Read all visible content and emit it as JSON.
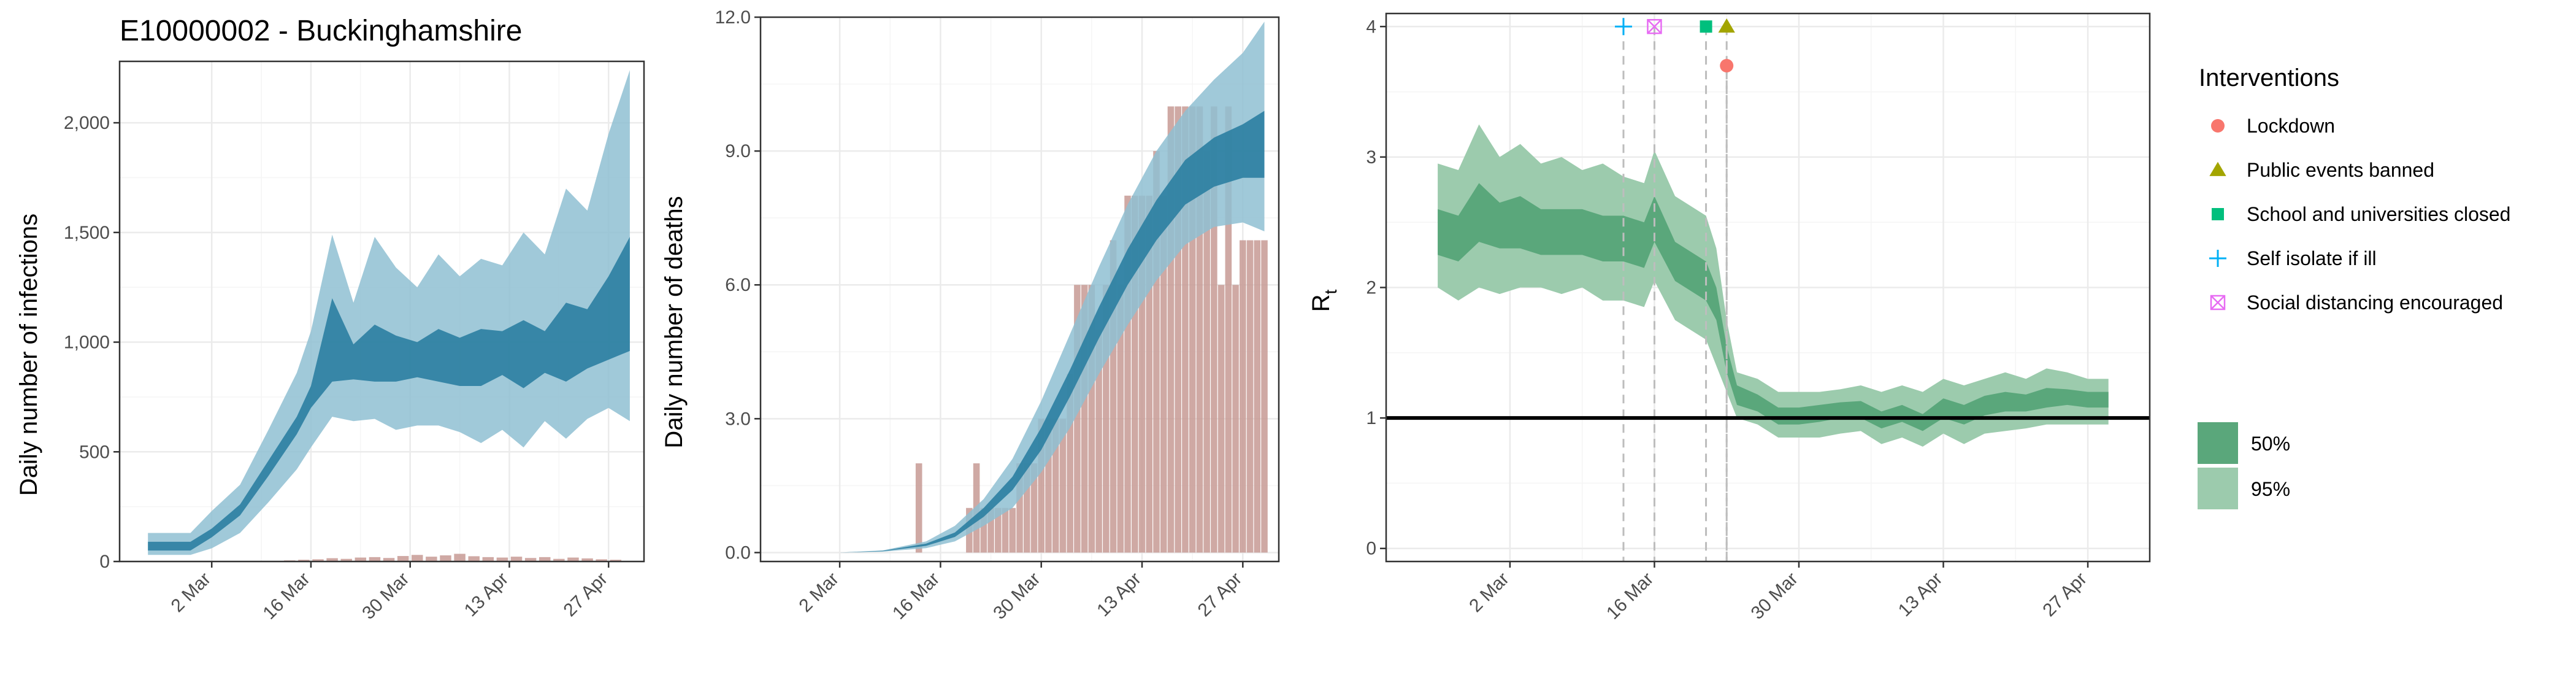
{
  "colors": {
    "infections_50": "#2b7ea1",
    "infections_95": "#8fc0d2",
    "deaths_50": "#2b7ea1",
    "deaths_95": "#8fc0d2",
    "bars": "#c79a94",
    "rt_50": "#5aa77b",
    "rt_95": "#9ccbad",
    "lockdown": "#f8766d",
    "public_events": "#a3a500",
    "schools": "#00bf7d",
    "self_isolate": "#00b0f6",
    "social_distancing": "#e76bf3",
    "grid_major": "#ebebeb",
    "grid_minor": "#f5f5f5",
    "frame": "#333333"
  },
  "chart_data": [
    {
      "type": "area",
      "panel": "infections",
      "title": "E10000002 - Buckinghamshire",
      "ylabel": "Daily number of infections",
      "xlabel": "",
      "x_ticks": [
        "2 Mar",
        "16 Mar",
        "30 Mar",
        "13 Apr",
        "27 Apr"
      ],
      "x_tick_dates": [
        "2020-03-02",
        "2020-03-16",
        "2020-03-30",
        "2020-04-13",
        "2020-04-27"
      ],
      "xlim": [
        "2020-02-18",
        "2020-05-02"
      ],
      "y_ticks": [
        "0",
        "500",
        "1,000",
        "1,500",
        "2,000"
      ],
      "y_tick_values": [
        0,
        500,
        1000,
        1500,
        2000
      ],
      "ylim": [
        0,
        2280
      ],
      "grid": true,
      "series": [
        {
          "band": "95%",
          "dates": [
            "2020-02-22",
            "2020-02-28",
            "2020-03-02",
            "2020-03-06",
            "2020-03-10",
            "2020-03-14",
            "2020-03-16",
            "2020-03-19",
            "2020-03-22",
            "2020-03-25",
            "2020-03-28",
            "2020-03-31",
            "2020-04-03",
            "2020-04-06",
            "2020-04-09",
            "2020-04-12",
            "2020-04-15",
            "2020-04-18",
            "2020-04-21",
            "2020-04-24",
            "2020-04-27",
            "2020-04-30"
          ],
          "lower": [
            30,
            30,
            60,
            130,
            270,
            420,
            520,
            660,
            640,
            650,
            600,
            620,
            620,
            590,
            540,
            600,
            520,
            640,
            560,
            650,
            700,
            640
          ],
          "upper": [
            130,
            130,
            230,
            350,
            600,
            860,
            1050,
            1490,
            1180,
            1480,
            1340,
            1250,
            1400,
            1300,
            1380,
            1350,
            1500,
            1400,
            1700,
            1600,
            1950,
            2240
          ]
        },
        {
          "band": "50%",
          "dates": [
            "2020-02-22",
            "2020-02-28",
            "2020-03-02",
            "2020-03-06",
            "2020-03-10",
            "2020-03-14",
            "2020-03-16",
            "2020-03-19",
            "2020-03-22",
            "2020-03-25",
            "2020-03-28",
            "2020-03-31",
            "2020-04-03",
            "2020-04-06",
            "2020-04-09",
            "2020-04-12",
            "2020-04-15",
            "2020-04-18",
            "2020-04-21",
            "2020-04-24",
            "2020-04-27",
            "2020-04-30"
          ],
          "lower": [
            50,
            50,
            110,
            210,
            390,
            580,
            700,
            820,
            830,
            820,
            820,
            840,
            820,
            800,
            800,
            850,
            790,
            860,
            820,
            880,
            920,
            960
          ],
          "upper": [
            90,
            90,
            150,
            260,
            460,
            660,
            800,
            1200,
            990,
            1080,
            1030,
            1000,
            1060,
            1020,
            1060,
            1050,
            1100,
            1050,
            1180,
            1150,
            1300,
            1480
          ]
        }
      ],
      "bars": {
        "dates": [
          "2020-03-13",
          "2020-03-15",
          "2020-03-17",
          "2020-03-19",
          "2020-03-21",
          "2020-03-23",
          "2020-03-25",
          "2020-03-27",
          "2020-03-29",
          "2020-03-31",
          "2020-04-02",
          "2020-04-04",
          "2020-04-06",
          "2020-04-08",
          "2020-04-10",
          "2020-04-12",
          "2020-04-14",
          "2020-04-16",
          "2020-04-18",
          "2020-04-20",
          "2020-04-22",
          "2020-04-24",
          "2020-04-26",
          "2020-04-28"
        ],
        "values": [
          5,
          8,
          10,
          15,
          12,
          18,
          20,
          16,
          25,
          30,
          22,
          28,
          35,
          24,
          20,
          18,
          22,
          16,
          20,
          12,
          18,
          14,
          10,
          8
        ]
      }
    },
    {
      "type": "area",
      "panel": "deaths",
      "title": "",
      "ylabel": "Daily number of deaths",
      "xlabel": "",
      "x_ticks": [
        "2 Mar",
        "16 Mar",
        "30 Mar",
        "13 Apr",
        "27 Apr"
      ],
      "x_tick_dates": [
        "2020-03-02",
        "2020-03-16",
        "2020-03-30",
        "2020-04-13",
        "2020-04-27"
      ],
      "xlim": [
        "2020-02-20",
        "2020-05-02"
      ],
      "y_ticks": [
        "0.0",
        "3.0",
        "6.0",
        "9.0",
        "12.0"
      ],
      "y_tick_values": [
        0,
        3,
        6,
        9,
        12
      ],
      "ylim": [
        -0.2,
        12
      ],
      "grid": true,
      "series": [
        {
          "band": "95%",
          "dates": [
            "2020-02-25",
            "2020-03-02",
            "2020-03-08",
            "2020-03-14",
            "2020-03-18",
            "2020-03-22",
            "2020-03-26",
            "2020-03-30",
            "2020-04-03",
            "2020-04-07",
            "2020-04-11",
            "2020-04-15",
            "2020-04-19",
            "2020-04-23",
            "2020-04-27",
            "2020-04-30"
          ],
          "lower": [
            0,
            0,
            0.02,
            0.1,
            0.25,
            0.6,
            1.0,
            1.8,
            2.8,
            4.0,
            5.1,
            6.1,
            6.9,
            7.3,
            7.4,
            7.2
          ],
          "upper": [
            0,
            0,
            0.05,
            0.25,
            0.6,
            1.2,
            2.1,
            3.4,
            4.9,
            6.4,
            7.8,
            9.0,
            9.9,
            10.6,
            11.2,
            11.9
          ]
        },
        {
          "band": "50%",
          "dates": [
            "2020-02-25",
            "2020-03-02",
            "2020-03-08",
            "2020-03-14",
            "2020-03-18",
            "2020-03-22",
            "2020-03-26",
            "2020-03-30",
            "2020-04-03",
            "2020-04-07",
            "2020-04-11",
            "2020-04-15",
            "2020-04-19",
            "2020-04-23",
            "2020-04-27",
            "2020-04-30"
          ],
          "lower": [
            0,
            0,
            0.03,
            0.15,
            0.35,
            0.8,
            1.4,
            2.3,
            3.5,
            4.8,
            6.0,
            7.0,
            7.8,
            8.2,
            8.4,
            8.4
          ],
          "upper": [
            0,
            0,
            0.04,
            0.2,
            0.45,
            1.0,
            1.7,
            2.8,
            4.1,
            5.5,
            6.8,
            7.9,
            8.8,
            9.3,
            9.6,
            9.9
          ]
        }
      ],
      "bars": {
        "dates": [
          "2020-03-13",
          "2020-03-14",
          "2020-03-15",
          "2020-03-16",
          "2020-03-17",
          "2020-03-18",
          "2020-03-19",
          "2020-03-20",
          "2020-03-21",
          "2020-03-22",
          "2020-03-23",
          "2020-03-24",
          "2020-03-25",
          "2020-03-26",
          "2020-03-27",
          "2020-03-28",
          "2020-03-29",
          "2020-03-30",
          "2020-03-31",
          "2020-04-01",
          "2020-04-02",
          "2020-04-03",
          "2020-04-04",
          "2020-04-05",
          "2020-04-06",
          "2020-04-07",
          "2020-04-08",
          "2020-04-09",
          "2020-04-10",
          "2020-04-11",
          "2020-04-12",
          "2020-04-13",
          "2020-04-14",
          "2020-04-15",
          "2020-04-16",
          "2020-04-17",
          "2020-04-18",
          "2020-04-19",
          "2020-04-20",
          "2020-04-21",
          "2020-04-22",
          "2020-04-23",
          "2020-04-24",
          "2020-04-25",
          "2020-04-26",
          "2020-04-27",
          "2020-04-28",
          "2020-04-29",
          "2020-04-30"
        ],
        "values": [
          2,
          0,
          0,
          0,
          0,
          0,
          0,
          1,
          2,
          1,
          1,
          1,
          1,
          1,
          2,
          2,
          2,
          3,
          3,
          3,
          3,
          4,
          6,
          6,
          6,
          5,
          6,
          7,
          6,
          8,
          8,
          8,
          8,
          9,
          8,
          10,
          10,
          10,
          10,
          10,
          9,
          10,
          6,
          10,
          6,
          7,
          7,
          7,
          7
        ]
      }
    },
    {
      "type": "area",
      "panel": "rt",
      "title": "",
      "ylabel": "R",
      "ylabel_subscript": "t",
      "xlabel": "",
      "x_ticks": [
        "2 Mar",
        "16 Mar",
        "30 Mar",
        "13 Apr",
        "27 Apr"
      ],
      "x_tick_dates": [
        "2020-03-02",
        "2020-03-16",
        "2020-03-30",
        "2020-04-13",
        "2020-04-27"
      ],
      "xlim": [
        "2020-02-19",
        "2020-05-03"
      ],
      "y_ticks": [
        "0",
        "1",
        "2",
        "3",
        "4"
      ],
      "y_tick_values": [
        0,
        1,
        2,
        3,
        4
      ],
      "ylim": [
        -0.1,
        4.1
      ],
      "grid": true,
      "reference_line": 1,
      "series": [
        {
          "band": "95%",
          "dates": [
            "2020-02-24",
            "2020-02-26",
            "2020-02-28",
            "2020-03-01",
            "2020-03-03",
            "2020-03-05",
            "2020-03-07",
            "2020-03-09",
            "2020-03-11",
            "2020-03-13",
            "2020-03-15",
            "2020-03-16",
            "2020-03-18",
            "2020-03-20",
            "2020-03-21",
            "2020-03-22",
            "2020-03-23",
            "2020-03-24",
            "2020-03-26",
            "2020-03-28",
            "2020-03-30",
            "2020-04-01",
            "2020-04-03",
            "2020-04-05",
            "2020-04-07",
            "2020-04-09",
            "2020-04-11",
            "2020-04-13",
            "2020-04-15",
            "2020-04-17",
            "2020-04-19",
            "2020-04-21",
            "2020-04-23",
            "2020-04-25",
            "2020-04-27",
            "2020-04-29"
          ],
          "lower": [
            2.0,
            1.9,
            2.0,
            1.95,
            2.0,
            2.0,
            1.95,
            2.0,
            1.9,
            1.9,
            1.85,
            2.05,
            1.75,
            1.65,
            1.6,
            1.4,
            1.2,
            1.0,
            0.95,
            0.85,
            0.85,
            0.85,
            0.88,
            0.9,
            0.8,
            0.85,
            0.78,
            0.88,
            0.8,
            0.88,
            0.9,
            0.92,
            0.95,
            0.95,
            0.95,
            0.95
          ],
          "upper": [
            2.95,
            2.9,
            3.25,
            3.0,
            3.1,
            2.95,
            3.0,
            2.9,
            2.95,
            2.85,
            2.8,
            3.05,
            2.7,
            2.6,
            2.55,
            2.3,
            1.75,
            1.35,
            1.3,
            1.2,
            1.2,
            1.2,
            1.22,
            1.25,
            1.2,
            1.25,
            1.2,
            1.3,
            1.25,
            1.3,
            1.35,
            1.3,
            1.38,
            1.35,
            1.3,
            1.3
          ]
        },
        {
          "band": "50%",
          "dates": [
            "2020-02-24",
            "2020-02-26",
            "2020-02-28",
            "2020-03-01",
            "2020-03-03",
            "2020-03-05",
            "2020-03-07",
            "2020-03-09",
            "2020-03-11",
            "2020-03-13",
            "2020-03-15",
            "2020-03-16",
            "2020-03-18",
            "2020-03-20",
            "2020-03-21",
            "2020-03-22",
            "2020-03-23",
            "2020-03-24",
            "2020-03-26",
            "2020-03-28",
            "2020-03-30",
            "2020-04-01",
            "2020-04-03",
            "2020-04-05",
            "2020-04-07",
            "2020-04-09",
            "2020-04-11",
            "2020-04-13",
            "2020-04-15",
            "2020-04-17",
            "2020-04-19",
            "2020-04-21",
            "2020-04-23",
            "2020-04-25",
            "2020-04-27",
            "2020-04-29"
          ],
          "lower": [
            2.25,
            2.2,
            2.35,
            2.3,
            2.3,
            2.25,
            2.25,
            2.25,
            2.2,
            2.2,
            2.15,
            2.35,
            2.05,
            1.95,
            1.9,
            1.75,
            1.35,
            1.1,
            1.05,
            0.95,
            0.95,
            0.97,
            1.0,
            1.0,
            0.92,
            0.97,
            0.9,
            1.0,
            0.95,
            1.02,
            1.05,
            1.05,
            1.08,
            1.1,
            1.08,
            1.08
          ],
          "upper": [
            2.6,
            2.55,
            2.8,
            2.65,
            2.7,
            2.6,
            2.6,
            2.6,
            2.55,
            2.55,
            2.5,
            2.7,
            2.35,
            2.25,
            2.2,
            2.0,
            1.55,
            1.25,
            1.18,
            1.08,
            1.08,
            1.1,
            1.12,
            1.13,
            1.05,
            1.1,
            1.03,
            1.15,
            1.1,
            1.17,
            1.2,
            1.18,
            1.23,
            1.22,
            1.2,
            1.2
          ]
        }
      ],
      "interventions": [
        {
          "name": "Lockdown",
          "date": "2020-03-23",
          "y": 3.7,
          "shape": "circle"
        },
        {
          "name": "Public events banned",
          "date": "2020-03-23",
          "y": 4.0,
          "shape": "triangle"
        },
        {
          "name": "School and universities closed",
          "date": "2020-03-21",
          "y": 4.0,
          "shape": "square"
        },
        {
          "name": "Self isolate if ill",
          "date": "2020-03-13",
          "y": 4.0,
          "shape": "plus"
        },
        {
          "name": "Social distancing encouraged",
          "date": "2020-03-16",
          "y": 4.0,
          "shape": "boxx"
        }
      ]
    }
  ],
  "legend": {
    "interventions_title": "Interventions",
    "interventions": [
      {
        "label": "Lockdown",
        "shape": "circle"
      },
      {
        "label": "Public events banned",
        "shape": "triangle"
      },
      {
        "label": "School and universities closed",
        "shape": "square"
      },
      {
        "label": "Self isolate if ill",
        "shape": "plus"
      },
      {
        "label": "Social distancing encouraged",
        "shape": "boxx"
      }
    ],
    "bands": [
      {
        "label": "50%"
      },
      {
        "label": "95%"
      }
    ]
  }
}
